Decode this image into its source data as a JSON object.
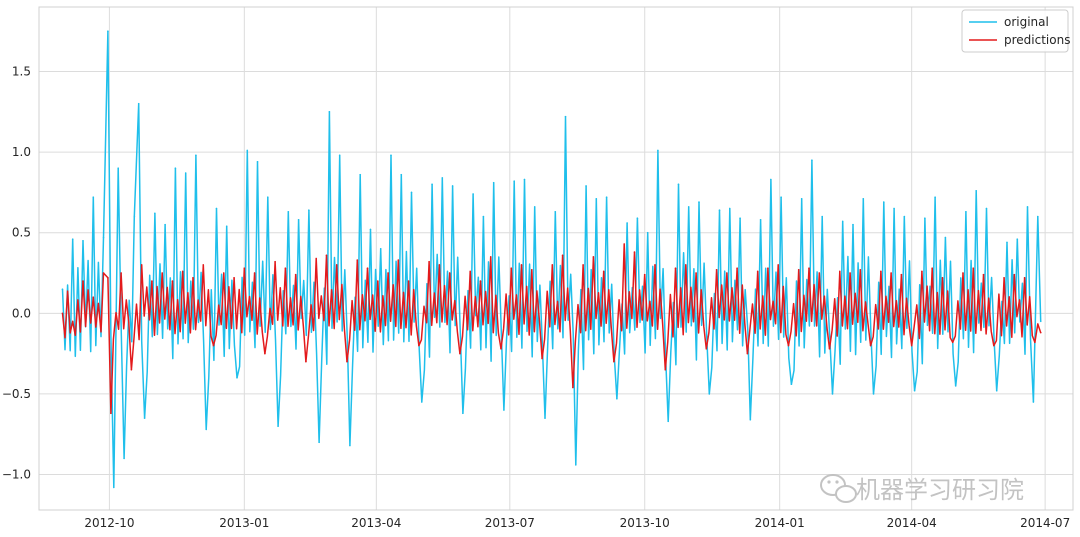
{
  "chart_data": {
    "type": "line",
    "title": "",
    "xlabel": "",
    "ylabel": "",
    "x_ticks": [
      "2012-10",
      "2013-01",
      "2013-04",
      "2013-07",
      "2013-10",
      "2014-01",
      "2014-04",
      "2014-07"
    ],
    "y_ticks": [
      "−1.0",
      "−0.5",
      "0.0",
      "0.5",
      "1.0",
      "1.5"
    ],
    "xlim": [
      "2012-08-14",
      "2014-07-20"
    ],
    "ylim": [
      -1.22,
      1.9
    ],
    "x_range": [
      "2012-08-30",
      "2014-06-28"
    ],
    "grid": true,
    "legend_position": "top-right",
    "series": [
      {
        "name": "original",
        "color": "#1fbfeb",
        "points": [
          [
            "2012-08-30",
            0.15
          ],
          [
            "2012-09-06",
            0.46
          ],
          [
            "2012-09-13",
            0.45
          ],
          [
            "2012-09-20",
            0.72
          ],
          [
            "2012-09-27",
            0.47
          ],
          [
            "2012-09-30",
            1.75
          ],
          [
            "2012-10-04",
            -1.08
          ],
          [
            "2012-10-07",
            0.9
          ],
          [
            "2012-10-11",
            -0.9
          ],
          [
            "2012-10-18",
            0.6
          ],
          [
            "2012-10-21",
            1.3
          ],
          [
            "2012-10-25",
            -0.65
          ],
          [
            "2012-11-01",
            0.62
          ],
          [
            "2012-11-08",
            0.55
          ],
          [
            "2012-11-15",
            0.9
          ],
          [
            "2012-11-22",
            0.87
          ],
          [
            "2012-11-29",
            0.98
          ],
          [
            "2012-12-06",
            -0.72
          ],
          [
            "2012-12-13",
            0.65
          ],
          [
            "2012-12-20",
            0.54
          ],
          [
            "2012-12-27",
            -0.4
          ],
          [
            "2013-01-03",
            1.01
          ],
          [
            "2013-01-10",
            0.94
          ],
          [
            "2013-01-17",
            0.72
          ],
          [
            "2013-01-24",
            -0.7
          ],
          [
            "2013-01-31",
            0.63
          ],
          [
            "2013-02-07",
            0.58
          ],
          [
            "2013-02-14",
            0.64
          ],
          [
            "2013-02-21",
            -0.8
          ],
          [
            "2013-02-28",
            1.25
          ],
          [
            "2013-03-07",
            0.98
          ],
          [
            "2013-03-14",
            -0.82
          ],
          [
            "2013-03-21",
            0.86
          ],
          [
            "2013-03-28",
            0.52
          ],
          [
            "2013-04-04",
            0.4
          ],
          [
            "2013-04-11",
            0.98
          ],
          [
            "2013-04-18",
            0.86
          ],
          [
            "2013-04-25",
            0.75
          ],
          [
            "2013-05-02",
            -0.55
          ],
          [
            "2013-05-09",
            0.8
          ],
          [
            "2013-05-16",
            0.84
          ],
          [
            "2013-05-23",
            0.79
          ],
          [
            "2013-05-30",
            -0.62
          ],
          [
            "2013-06-06",
            0.74
          ],
          [
            "2013-06-13",
            0.6
          ],
          [
            "2013-06-20",
            0.81
          ],
          [
            "2013-06-27",
            -0.6
          ],
          [
            "2013-07-04",
            0.82
          ],
          [
            "2013-07-11",
            0.83
          ],
          [
            "2013-07-18",
            0.66
          ],
          [
            "2013-07-25",
            -0.65
          ],
          [
            "2013-08-01",
            0.63
          ],
          [
            "2013-08-08",
            1.22
          ],
          [
            "2013-08-15",
            -0.94
          ],
          [
            "2013-08-22",
            0.79
          ],
          [
            "2013-08-29",
            0.71
          ],
          [
            "2013-09-05",
            0.72
          ],
          [
            "2013-09-12",
            -0.53
          ],
          [
            "2013-09-19",
            0.56
          ],
          [
            "2013-09-26",
            0.59
          ],
          [
            "2013-10-03",
            0.5
          ],
          [
            "2013-10-10",
            1.01
          ],
          [
            "2013-10-17",
            -0.67
          ],
          [
            "2013-10-24",
            0.8
          ],
          [
            "2013-10-31",
            0.66
          ],
          [
            "2013-11-07",
            0.69
          ],
          [
            "2013-11-14",
            -0.5
          ],
          [
            "2013-11-21",
            0.64
          ],
          [
            "2013-11-28",
            0.65
          ],
          [
            "2013-12-05",
            0.59
          ],
          [
            "2013-12-12",
            -0.66
          ],
          [
            "2013-12-19",
            0.58
          ],
          [
            "2013-12-26",
            0.83
          ],
          [
            "2014-01-02",
            0.72
          ],
          [
            "2014-01-09",
            -0.44
          ],
          [
            "2014-01-16",
            0.71
          ],
          [
            "2014-01-23",
            0.95
          ],
          [
            "2014-01-30",
            0.6
          ],
          [
            "2014-02-06",
            -0.5
          ],
          [
            "2014-02-13",
            0.57
          ],
          [
            "2014-02-20",
            0.55
          ],
          [
            "2014-02-27",
            0.71
          ],
          [
            "2014-03-06",
            -0.5
          ],
          [
            "2014-03-13",
            0.69
          ],
          [
            "2014-03-20",
            0.65
          ],
          [
            "2014-03-27",
            0.6
          ],
          [
            "2014-04-03",
            -0.48
          ],
          [
            "2014-04-10",
            0.59
          ],
          [
            "2014-04-17",
            0.72
          ],
          [
            "2014-04-24",
            0.47
          ],
          [
            "2014-05-01",
            -0.45
          ],
          [
            "2014-05-08",
            0.63
          ],
          [
            "2014-05-15",
            0.76
          ],
          [
            "2014-05-22",
            0.65
          ],
          [
            "2014-05-29",
            -0.48
          ],
          [
            "2014-06-05",
            0.44
          ],
          [
            "2014-06-12",
            0.46
          ],
          [
            "2014-06-19",
            0.66
          ],
          [
            "2014-06-23",
            -0.55
          ],
          [
            "2014-06-26",
            0.6
          ],
          [
            "2014-06-28",
            -0.05
          ]
        ]
      },
      {
        "name": "predictions",
        "color": "#e31a1c",
        "points": [
          [
            "2012-08-30",
            0.0
          ],
          [
            "2012-09-06",
            -0.05
          ],
          [
            "2012-09-13",
            0.2
          ],
          [
            "2012-09-20",
            0.1
          ],
          [
            "2012-09-27",
            0.25
          ],
          [
            "2012-09-30",
            0.22
          ],
          [
            "2012-10-02",
            -0.62
          ],
          [
            "2012-10-09",
            0.25
          ],
          [
            "2012-10-16",
            -0.35
          ],
          [
            "2012-10-23",
            0.3
          ],
          [
            "2012-10-30",
            0.2
          ],
          [
            "2012-11-06",
            0.25
          ],
          [
            "2012-11-13",
            0.2
          ],
          [
            "2012-11-20",
            0.26
          ],
          [
            "2012-11-27",
            0.22
          ],
          [
            "2012-12-04",
            0.3
          ],
          [
            "2012-12-11",
            -0.2
          ],
          [
            "2012-12-18",
            0.25
          ],
          [
            "2012-12-25",
            0.22
          ],
          [
            "2013-01-01",
            0.28
          ],
          [
            "2013-01-08",
            0.25
          ],
          [
            "2013-01-15",
            -0.25
          ],
          [
            "2013-01-22",
            0.32
          ],
          [
            "2013-01-29",
            0.28
          ],
          [
            "2013-02-05",
            0.24
          ],
          [
            "2013-02-12",
            -0.3
          ],
          [
            "2013-02-19",
            0.34
          ],
          [
            "2013-02-26",
            0.36
          ],
          [
            "2013-03-05",
            0.3
          ],
          [
            "2013-03-12",
            -0.3
          ],
          [
            "2013-03-19",
            0.33
          ],
          [
            "2013-03-26",
            0.28
          ],
          [
            "2013-04-02",
            0.2
          ],
          [
            "2013-04-09",
            0.25
          ],
          [
            "2013-04-16",
            0.33
          ],
          [
            "2013-04-23",
            0.2
          ],
          [
            "2013-04-30",
            -0.2
          ],
          [
            "2013-05-07",
            0.32
          ],
          [
            "2013-05-14",
            0.3
          ],
          [
            "2013-05-21",
            0.25
          ],
          [
            "2013-05-28",
            -0.25
          ],
          [
            "2013-06-04",
            0.26
          ],
          [
            "2013-06-11",
            0.2
          ],
          [
            "2013-06-18",
            0.35
          ],
          [
            "2013-06-25",
            -0.22
          ],
          [
            "2013-07-02",
            0.28
          ],
          [
            "2013-07-09",
            0.3
          ],
          [
            "2013-07-16",
            0.27
          ],
          [
            "2013-07-23",
            -0.28
          ],
          [
            "2013-07-30",
            0.3
          ],
          [
            "2013-08-06",
            0.36
          ],
          [
            "2013-08-13",
            -0.46
          ],
          [
            "2013-08-20",
            0.3
          ],
          [
            "2013-08-27",
            0.35
          ],
          [
            "2013-09-03",
            0.26
          ],
          [
            "2013-09-10",
            -0.3
          ],
          [
            "2013-09-17",
            0.43
          ],
          [
            "2013-09-24",
            0.38
          ],
          [
            "2013-10-01",
            0.24
          ],
          [
            "2013-10-08",
            0.3
          ],
          [
            "2013-10-15",
            -0.35
          ],
          [
            "2013-10-22",
            0.28
          ],
          [
            "2013-10-29",
            0.3
          ],
          [
            "2013-11-05",
            0.25
          ],
          [
            "2013-11-12",
            -0.22
          ],
          [
            "2013-11-19",
            0.27
          ],
          [
            "2013-11-26",
            0.25
          ],
          [
            "2013-12-03",
            0.28
          ],
          [
            "2013-12-10",
            -0.25
          ],
          [
            "2013-12-17",
            0.26
          ],
          [
            "2013-12-24",
            0.28
          ],
          [
            "2013-12-31",
            0.3
          ],
          [
            "2014-01-07",
            -0.2
          ],
          [
            "2014-01-14",
            0.27
          ],
          [
            "2014-01-21",
            0.28
          ],
          [
            "2014-01-28",
            0.25
          ],
          [
            "2014-02-04",
            -0.22
          ],
          [
            "2014-02-11",
            0.26
          ],
          [
            "2014-02-18",
            0.25
          ],
          [
            "2014-02-25",
            0.27
          ],
          [
            "2014-03-04",
            -0.2
          ],
          [
            "2014-03-11",
            0.26
          ],
          [
            "2014-03-18",
            0.25
          ],
          [
            "2014-03-25",
            0.24
          ],
          [
            "2014-04-01",
            -0.2
          ],
          [
            "2014-04-08",
            0.26
          ],
          [
            "2014-04-15",
            0.28
          ],
          [
            "2014-04-22",
            0.22
          ],
          [
            "2014-04-29",
            -0.18
          ],
          [
            "2014-05-06",
            0.25
          ],
          [
            "2014-05-13",
            0.28
          ],
          [
            "2014-05-20",
            0.24
          ],
          [
            "2014-05-27",
            -0.2
          ],
          [
            "2014-06-03",
            0.22
          ],
          [
            "2014-06-10",
            0.24
          ],
          [
            "2014-06-17",
            0.22
          ],
          [
            "2014-06-24",
            -0.18
          ],
          [
            "2014-06-28",
            -0.12
          ]
        ]
      }
    ]
  },
  "watermark": {
    "text": "机器学习研习院",
    "icon": "wechat-icon"
  }
}
